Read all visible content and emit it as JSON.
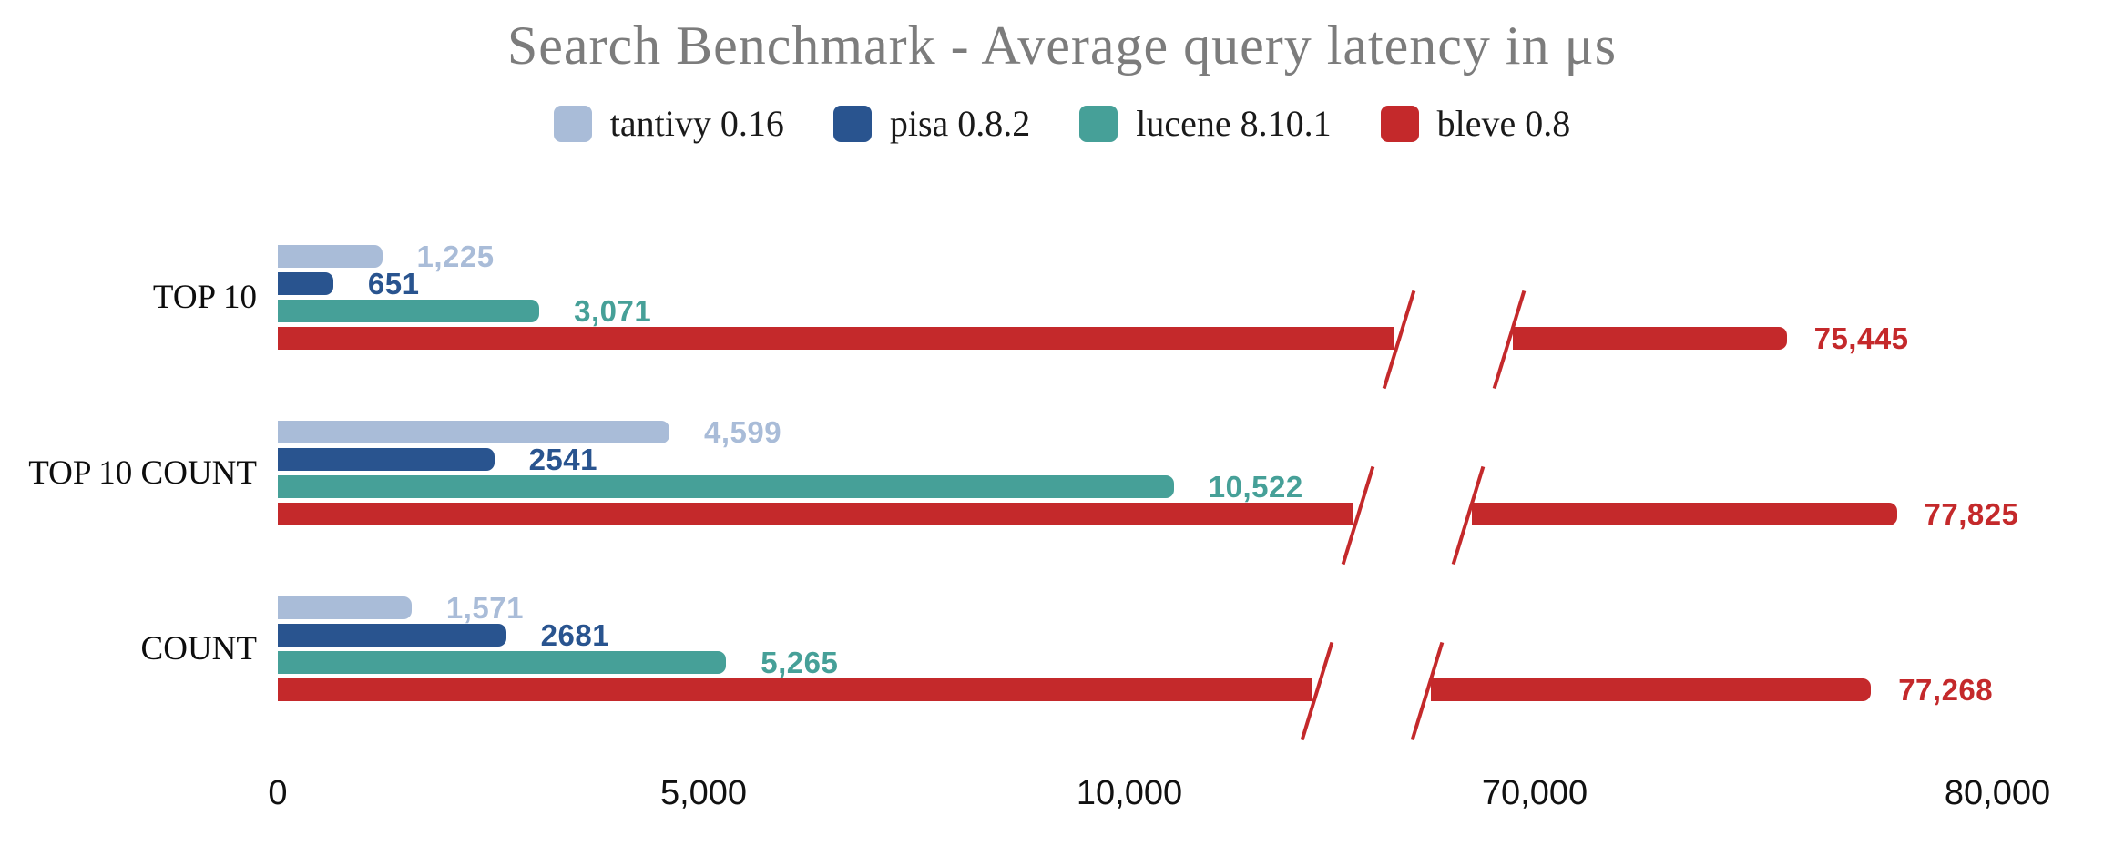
{
  "chart_data": {
    "type": "bar",
    "orientation": "horizontal",
    "title": "Search Benchmark - Average query latency in μs",
    "categories": [
      "TOP 10",
      "TOP 10 COUNT",
      "COUNT"
    ],
    "series": [
      {
        "name": "tantivy 0.16",
        "color": "#a9bcd8",
        "values": [
          1225,
          4599,
          1571
        ],
        "value_labels": [
          "1,225",
          "4,599",
          "1,571"
        ]
      },
      {
        "name": "pisa 0.8.2",
        "color": "#29548f",
        "values": [
          651,
          2541,
          2681
        ],
        "value_labels": [
          "651",
          "2541",
          "2681"
        ]
      },
      {
        "name": "lucene 8.10.1",
        "color": "#46a098",
        "values": [
          3071,
          10522,
          5265
        ],
        "value_labels": [
          "3,071",
          "10,522",
          "5,265"
        ]
      },
      {
        "name": "bleve 0.8",
        "color": "#c4292b",
        "values": [
          75445,
          77825,
          77268
        ],
        "value_labels": [
          "75,445",
          "77,825",
          "77,268"
        ]
      }
    ],
    "x_axis": {
      "ticks": [
        {
          "value": 0,
          "label": "0"
        },
        {
          "value": 5000,
          "label": "5,000"
        },
        {
          "value": 10000,
          "label": "10,000"
        },
        {
          "value": 70000,
          "label": "70,000"
        },
        {
          "value": 80000,
          "label": "80,000"
        }
      ],
      "break": {
        "after": 10000,
        "resume_at": 70000
      }
    },
    "legend_position": "top",
    "grid": false,
    "value_labels_shown": true
  },
  "colors": {
    "background": "#ffffff",
    "title_text": "#7c7c7c",
    "legend_text": "#1a1a1a",
    "category_text": "#0d0d0d",
    "axis_text": "#111111",
    "break_mark": "#c4292b"
  }
}
